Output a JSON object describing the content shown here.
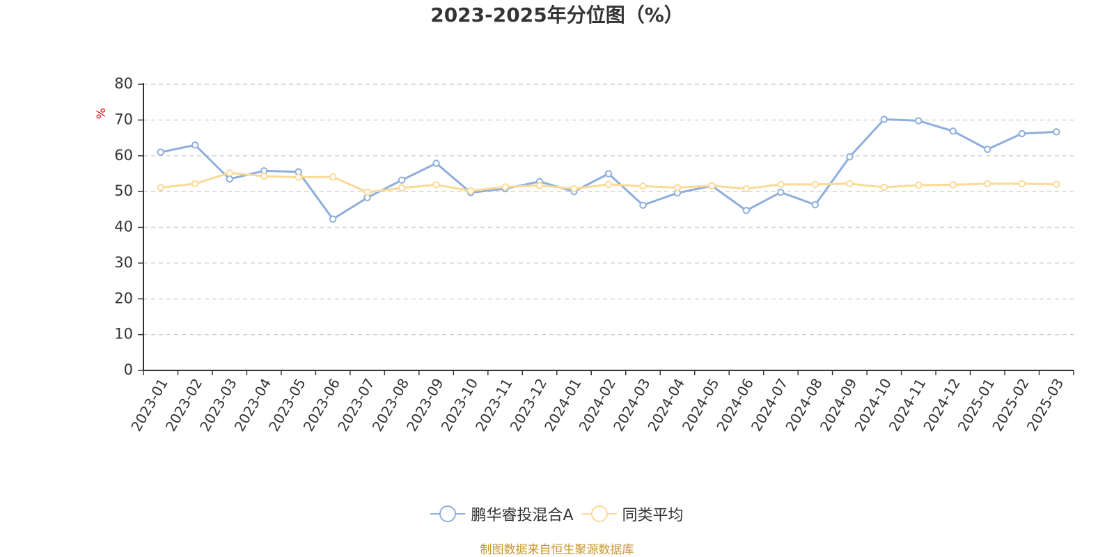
{
  "chart_data": {
    "type": "line",
    "title": "2023-2025年分位图（%）",
    "ylabel": "%",
    "ylim": [
      0,
      80
    ],
    "yticks": [
      0,
      10,
      20,
      30,
      40,
      50,
      60,
      70,
      80
    ],
    "grid": "horizontal dashed",
    "legend_position": "bottom-center",
    "categories": [
      "2023-01",
      "2023-02",
      "2023-03",
      "2023-04",
      "2023-05",
      "2023-06",
      "2023-07",
      "2023-08",
      "2023-09",
      "2023-10",
      "2023-11",
      "2023-12",
      "2024-01",
      "2024-02",
      "2024-03",
      "2024-04",
      "2024-05",
      "2024-06",
      "2024-07",
      "2024-08",
      "2024-09",
      "2024-10",
      "2024-11",
      "2024-12",
      "2025-01",
      "2025-02",
      "2025-03"
    ],
    "series": [
      {
        "name": "鹏华睿投混合A",
        "color": "#8eaedc",
        "values": [
          61.0,
          63.0,
          53.5,
          55.8,
          55.5,
          42.3,
          48.3,
          53.2,
          57.9,
          49.7,
          50.8,
          52.8,
          50.0,
          55.0,
          46.2,
          49.6,
          51.6,
          44.7,
          49.8,
          46.3,
          59.7,
          70.2,
          69.8,
          66.9,
          61.8,
          66.2,
          66.7
        ]
      },
      {
        "name": "同类平均",
        "color": "#fbd996",
        "values": [
          51.1,
          52.2,
          55.2,
          54.3,
          54.0,
          54.1,
          49.8,
          51.0,
          51.9,
          50.2,
          51.3,
          51.7,
          50.8,
          52.0,
          51.5,
          51.1,
          51.6,
          50.8,
          52.0,
          52.0,
          52.2,
          51.2,
          51.8,
          51.9,
          52.2,
          52.2,
          52.0
        ]
      }
    ]
  },
  "source_note": "制图数据来自恒生聚源数据库",
  "colors": {
    "axis": "#333333",
    "grid": "#cccccc",
    "ylabel": "#ff0000",
    "source_note": "#c8962e"
  }
}
